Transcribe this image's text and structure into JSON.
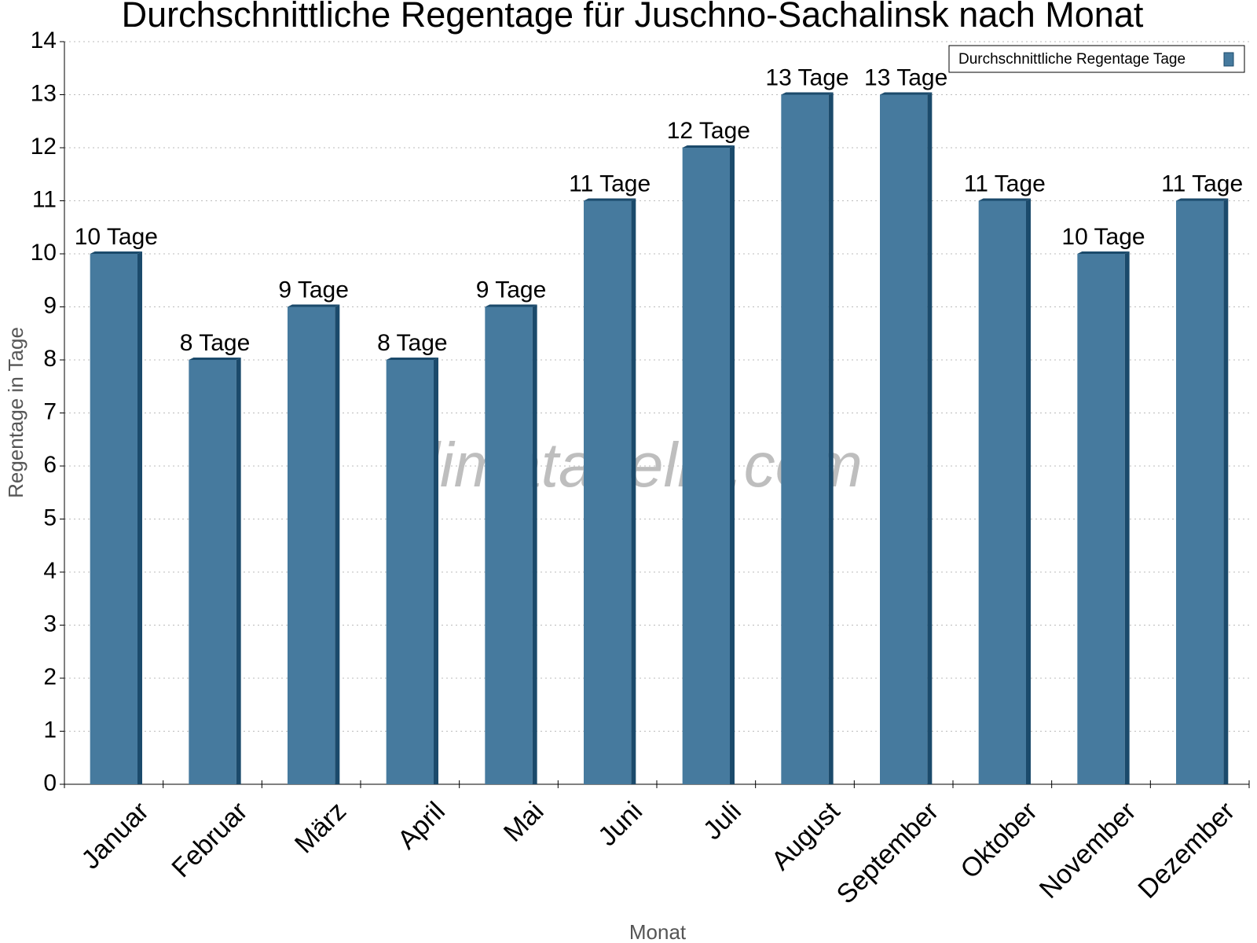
{
  "chart_data": {
    "type": "bar",
    "title": "Durchschnittliche Regentage für Juschno-Sachalinsk nach Monat",
    "x_label": "Monat",
    "y_label": "Regentage in Tage",
    "watermark": "klimatabelle.com",
    "categories": [
      "Januar",
      "Februar",
      "März",
      "April",
      "Mai",
      "Juni",
      "Juli",
      "August",
      "September",
      "Oktober",
      "November",
      "Dezember"
    ],
    "series": [
      {
        "name": "Durchschnittliche Regentage Tage",
        "color": "#467a9e",
        "values": [
          10,
          8,
          9,
          8,
          9,
          11,
          12,
          13,
          13,
          11,
          10,
          11
        ],
        "value_labels": [
          "10 Tage",
          "8 Tage",
          "9 Tage",
          "8 Tage",
          "9 Tage",
          "11 Tage",
          "12 Tage",
          "13 Tage",
          "13 Tage",
          "11 Tage",
          "10 Tage",
          "11 Tage"
        ]
      }
    ],
    "ylim": [
      0,
      14
    ],
    "yticks": [
      0,
      1,
      2,
      3,
      4,
      5,
      6,
      7,
      8,
      9,
      10,
      11,
      12,
      13,
      14
    ],
    "grid": true,
    "legend": "top-right"
  }
}
